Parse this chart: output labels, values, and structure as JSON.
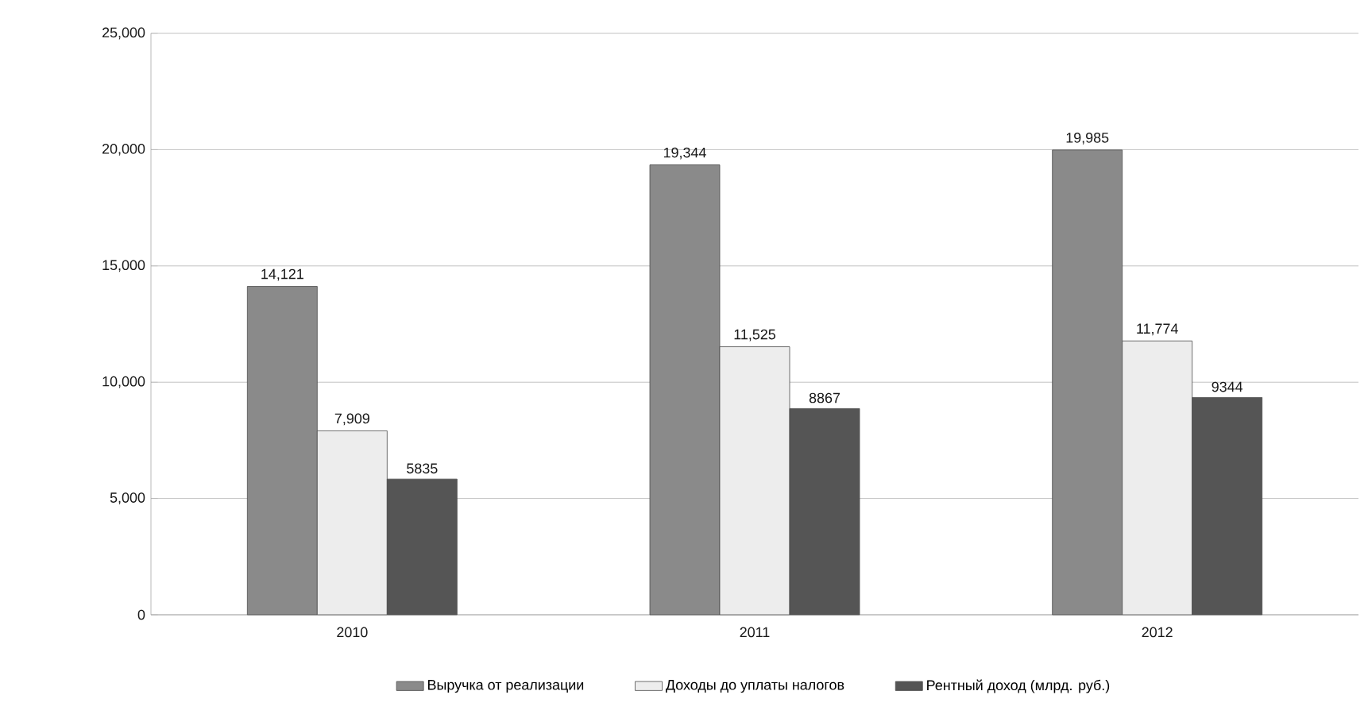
{
  "chart_data": {
    "type": "bar",
    "categories": [
      "2010",
      "2011",
      "2012"
    ],
    "series": [
      {
        "name": "Выручка от реализации",
        "color": "#8a8a8a",
        "values": [
          14121,
          19344,
          19985
        ],
        "value_labels": [
          "14,121",
          "19,344",
          "19,985"
        ]
      },
      {
        "name": "Доходы до уплаты налогов",
        "color": "#ededed",
        "values": [
          7909,
          11525,
          11774
        ],
        "value_labels": [
          "7,909",
          "11,525",
          "11,774"
        ]
      },
      {
        "name": "Рентный доход  (млрд. руб.)",
        "color": "#555555",
        "values": [
          5835,
          8867,
          9344
        ],
        "value_labels": [
          "5835",
          "8867",
          "9344"
        ]
      }
    ],
    "ylim": [
      0,
      25000
    ],
    "yticks": [
      {
        "value": 0,
        "label": "0"
      },
      {
        "value": 5000,
        "label": "5,000"
      },
      {
        "value": 10000,
        "label": "10,000"
      },
      {
        "value": 15000,
        "label": "15,000"
      },
      {
        "value": 20000,
        "label": "20,000"
      },
      {
        "value": 25000,
        "label": "25,000"
      }
    ],
    "grid": "y",
    "legend": "bottom"
  }
}
